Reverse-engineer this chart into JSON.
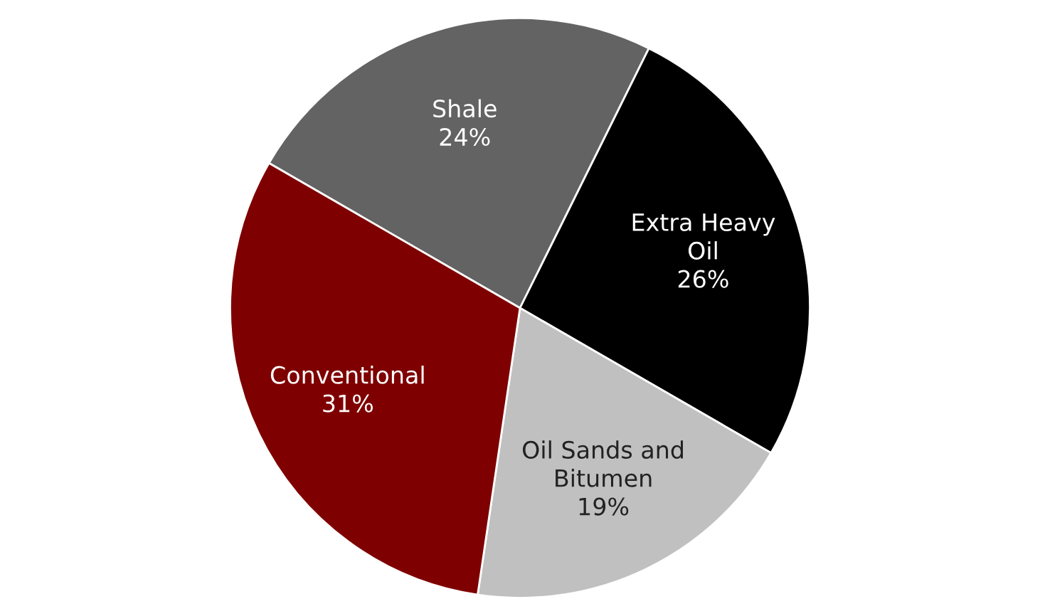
{
  "chart_data": {
    "type": "pie",
    "categories": [
      "Shale",
      "Extra Heavy\nOil",
      "Oil Sands and\nBitumen",
      "Conventional"
    ],
    "values": [
      24,
      26,
      19,
      31
    ],
    "colors": [
      "#636363",
      "#000000",
      "#c0c0c0",
      "#7f0000"
    ],
    "value_labels": [
      "24%",
      "26%",
      "19%",
      "31%"
    ]
  }
}
